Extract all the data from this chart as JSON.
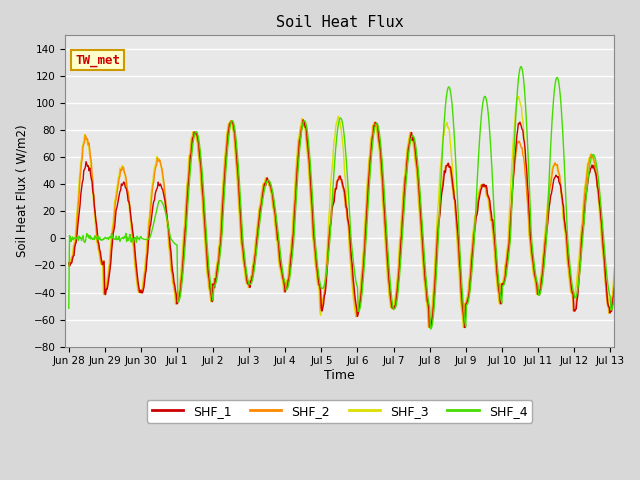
{
  "title": "Soil Heat Flux",
  "ylabel": "Soil Heat Flux ( W/m2)",
  "xlabel": "Time",
  "ylim": [
    -80,
    150
  ],
  "yticks": [
    -80,
    -60,
    -40,
    -20,
    0,
    20,
    40,
    60,
    80,
    100,
    120,
    140
  ],
  "colors": {
    "SHF_1": "#cc0000",
    "SHF_2": "#ff8800",
    "SHF_3": "#dddd00",
    "SHF_4": "#44dd00"
  },
  "legend_label": "TW_met",
  "legend_box_facecolor": "#ffffcc",
  "legend_box_edgecolor": "#cc9900",
  "background_color": "#e8e8e8",
  "grid_color": "#ffffff",
  "xtick_labels": [
    "Jun 28",
    "Jun 29",
    "Jun 30",
    "Jul 1",
    "Jul 2",
    "Jul 3",
    "Jul 4",
    "Jul 5",
    "Jul 6",
    "Jul 7",
    "Jul 8",
    "Jul 9",
    "Jul 10",
    "Jul 11",
    "Jul 12",
    "Jul 13"
  ],
  "num_days": 16,
  "pts_per_day": 48,
  "day_peaks": [
    55,
    40,
    40,
    79,
    87,
    43,
    86,
    45,
    85,
    76,
    55,
    40,
    86,
    46,
    54,
    47
  ],
  "day_peaks_shf2": [
    75,
    51,
    58,
    79,
    87,
    43,
    86,
    45,
    85,
    76,
    55,
    40,
    72,
    55,
    62,
    48
  ],
  "day_peaks_shf3": [
    75,
    52,
    59,
    79,
    87,
    43,
    87,
    89,
    85,
    76,
    85,
    40,
    105,
    55,
    62,
    48
  ],
  "day_peaks_shf4": [
    22,
    28,
    28,
    79,
    87,
    43,
    87,
    89,
    85,
    76,
    112,
    105,
    127,
    119,
    62,
    48
  ],
  "day_troughs": [
    -20,
    -41,
    -41,
    -47,
    -35,
    -34,
    -38,
    -52,
    -54,
    -52,
    -67,
    -49,
    -35,
    -42,
    -54,
    -53
  ],
  "day_troughs_shf3": [
    -20,
    -41,
    -41,
    -47,
    -35,
    -34,
    -38,
    -55,
    -54,
    -52,
    -67,
    -49,
    -35,
    -42,
    -44,
    -53
  ],
  "day_troughs_shf4": [
    0,
    0,
    -5,
    -47,
    -35,
    -34,
    -38,
    -37,
    -54,
    -52,
    -67,
    -49,
    -35,
    -42,
    -44,
    -53
  ]
}
